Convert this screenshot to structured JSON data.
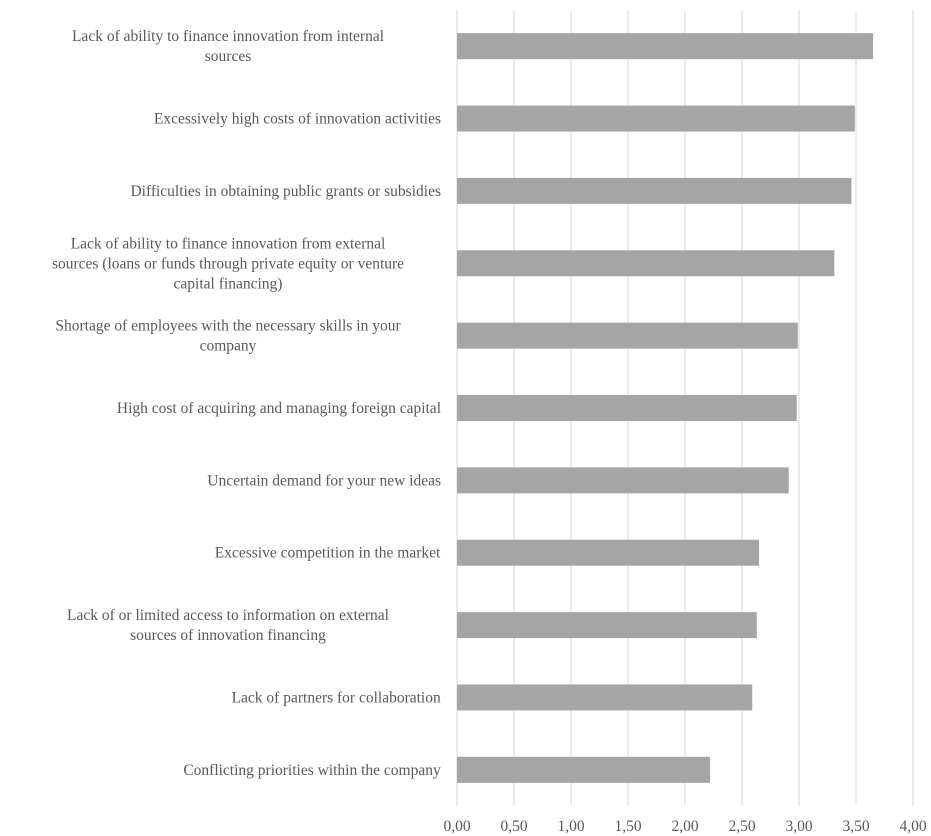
{
  "chart_data": {
    "type": "bar",
    "orientation": "horizontal",
    "title": "",
    "xlabel": "",
    "ylabel": "",
    "xlim": [
      0,
      4
    ],
    "grid": true,
    "legend": "none",
    "bar_color": "#a5a5a5",
    "tick_values": [
      0,
      0.5,
      1,
      1.5,
      2,
      2.5,
      3,
      3.5,
      4
    ],
    "tick_labels": [
      "0,00",
      "0,50",
      "1,00",
      "1,50",
      "2,00",
      "2,50",
      "3,00",
      "3,50",
      "4,00"
    ],
    "categories": [
      [
        "Lack of ability to finance innovation from internal",
        "sources"
      ],
      [
        "Excessively high costs of innovation activities"
      ],
      [
        "Difficulties in obtaining public grants or subsidies"
      ],
      [
        "Lack of ability to finance innovation from external",
        "sources (loans or funds through private equity or venture",
        "capital financing)"
      ],
      [
        "Shortage of employees with the necessary skills in your",
        "company"
      ],
      [
        "High cost of acquiring and managing foreign capital"
      ],
      [
        "Uncertain demand for your new ideas"
      ],
      [
        "Excessive competition in the market"
      ],
      [
        "Lack of or limited access to information on external",
        "sources of innovation financing"
      ],
      [
        "Lack of partners for collaboration"
      ],
      [
        "Conflicting priorities within the company"
      ]
    ],
    "values": [
      3.65,
      3.49,
      3.46,
      3.31,
      2.99,
      2.98,
      2.91,
      2.65,
      2.63,
      2.59,
      2.22
    ]
  }
}
